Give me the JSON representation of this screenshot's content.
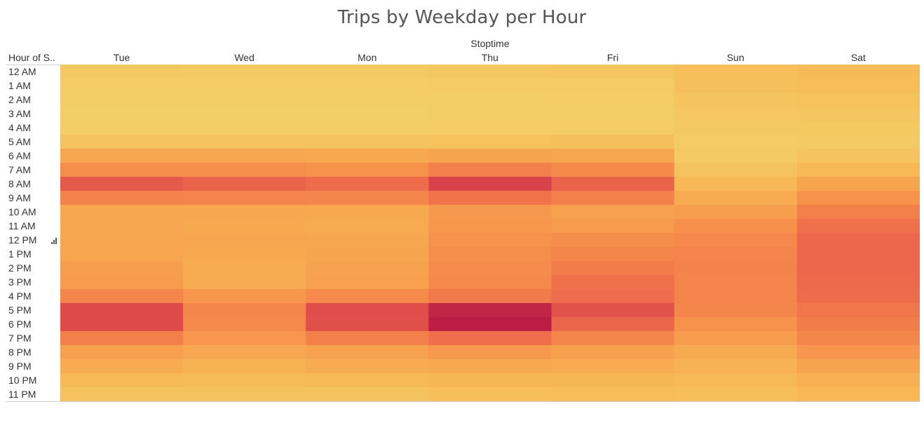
{
  "chart_data": {
    "type": "heatmap",
    "title": "Trips by Weekday per Hour",
    "column_axis_title": "Stoptime",
    "row_axis_title": "Hour of S..",
    "columns": [
      "Tue",
      "Wed",
      "Mon",
      "Thu",
      "Fri",
      "Sun",
      "Sat"
    ],
    "rows": [
      "12 AM",
      "1 AM",
      "2 AM",
      "3 AM",
      "4 AM",
      "5 AM",
      "6 AM",
      "7 AM",
      "8 AM",
      "9 AM",
      "10 AM",
      "11 AM",
      "12 PM",
      "1 PM",
      "2 PM",
      "3 PM",
      "4 PM",
      "5 PM",
      "6 PM",
      "7 PM",
      "8 PM",
      "9 PM",
      "10 PM",
      "11 PM"
    ],
    "value_scale": "relative trip intensity (0 = lowest, 1 = highest)",
    "values": [
      [
        0.06,
        0.05,
        0.05,
        0.07,
        0.08,
        0.13,
        0.16
      ],
      [
        0.03,
        0.03,
        0.03,
        0.04,
        0.04,
        0.12,
        0.14
      ],
      [
        0.02,
        0.02,
        0.02,
        0.02,
        0.03,
        0.09,
        0.11
      ],
      [
        0.01,
        0.01,
        0.01,
        0.02,
        0.02,
        0.07,
        0.08
      ],
      [
        0.02,
        0.02,
        0.02,
        0.03,
        0.03,
        0.06,
        0.06
      ],
      [
        0.1,
        0.1,
        0.1,
        0.11,
        0.12,
        0.04,
        0.05
      ],
      [
        0.28,
        0.28,
        0.27,
        0.3,
        0.29,
        0.05,
        0.09
      ],
      [
        0.42,
        0.42,
        0.4,
        0.5,
        0.44,
        0.1,
        0.18
      ],
      [
        0.68,
        0.64,
        0.6,
        0.8,
        0.64,
        0.18,
        0.3
      ],
      [
        0.48,
        0.47,
        0.46,
        0.56,
        0.5,
        0.25,
        0.4
      ],
      [
        0.28,
        0.28,
        0.27,
        0.36,
        0.32,
        0.33,
        0.5
      ],
      [
        0.28,
        0.27,
        0.26,
        0.37,
        0.35,
        0.41,
        0.57
      ],
      [
        0.29,
        0.29,
        0.28,
        0.4,
        0.42,
        0.45,
        0.62
      ],
      [
        0.29,
        0.27,
        0.3,
        0.42,
        0.46,
        0.47,
        0.62
      ],
      [
        0.33,
        0.25,
        0.31,
        0.43,
        0.51,
        0.48,
        0.62
      ],
      [
        0.35,
        0.25,
        0.32,
        0.45,
        0.57,
        0.47,
        0.61
      ],
      [
        0.46,
        0.37,
        0.44,
        0.52,
        0.6,
        0.47,
        0.6
      ],
      [
        0.76,
        0.46,
        0.74,
        0.95,
        0.72,
        0.46,
        0.54
      ],
      [
        0.76,
        0.45,
        0.73,
        1.0,
        0.63,
        0.4,
        0.51
      ],
      [
        0.5,
        0.38,
        0.49,
        0.58,
        0.46,
        0.34,
        0.46
      ],
      [
        0.32,
        0.28,
        0.31,
        0.36,
        0.32,
        0.26,
        0.38
      ],
      [
        0.25,
        0.22,
        0.25,
        0.27,
        0.25,
        0.21,
        0.3
      ],
      [
        0.17,
        0.15,
        0.17,
        0.19,
        0.19,
        0.17,
        0.23
      ],
      [
        0.1,
        0.1,
        0.1,
        0.13,
        0.14,
        0.13,
        0.18
      ]
    ],
    "color_scale": [
      "#f3d168",
      "#f7b553",
      "#f7924b",
      "#ee6b4b",
      "#d8424a",
      "#bb1d45"
    ],
    "grid": false,
    "legend": "none"
  }
}
